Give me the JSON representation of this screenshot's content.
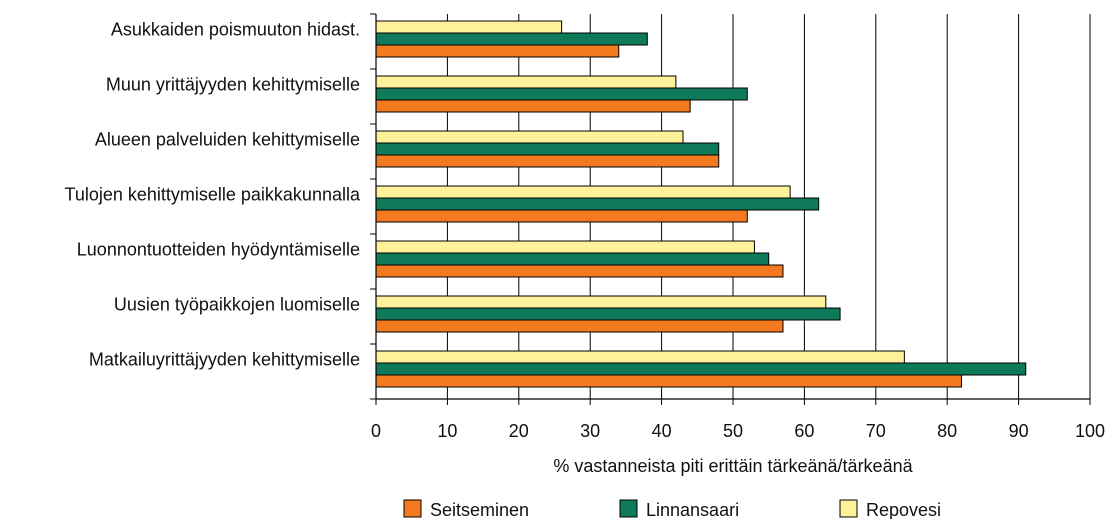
{
  "chart_data": {
    "type": "bar",
    "orientation": "horizontal",
    "categories": [
      "Asukkaiden poismuuton hidast.",
      "Muun yrittäjyyden kehittymiselle",
      "Alueen palveluiden kehittymiselle",
      "Tulojen kehittymiselle paikkakunnalla",
      "Luonnontuotteiden hyödyntämiselle",
      "Uusien työpaikkojen luomiselle",
      "Matkailuyrittäjyyden kehittymiselle"
    ],
    "series": [
      {
        "name": "Repovesi",
        "color": "#FFF09A",
        "values": [
          26,
          42,
          43,
          58,
          53,
          63,
          74
        ]
      },
      {
        "name": "Linnansaari",
        "color": "#0E7A5A",
        "values": [
          38,
          52,
          48,
          62,
          55,
          65,
          91
        ]
      },
      {
        "name": "Seitseminen",
        "color": "#F47A20",
        "values": [
          34,
          44,
          48,
          52,
          57,
          57,
          82
        ]
      }
    ],
    "legend_order": [
      "Seitseminen",
      "Linnansaari",
      "Repovesi"
    ],
    "xlabel": "% vastanneista piti erittäin tärkeänä/tärkeänä",
    "xlim": [
      0,
      100
    ],
    "xticks": [
      "0",
      "10",
      "20",
      "30",
      "40",
      "50",
      "60",
      "70",
      "80",
      "90",
      "100"
    ],
    "grid": "vertical",
    "legend_position": "bottom"
  }
}
